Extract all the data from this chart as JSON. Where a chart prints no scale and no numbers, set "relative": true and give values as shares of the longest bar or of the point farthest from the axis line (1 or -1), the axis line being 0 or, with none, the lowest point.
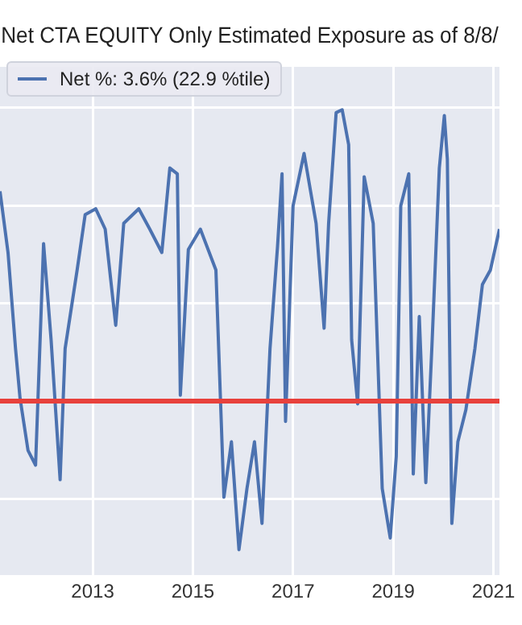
{
  "chart_data": {
    "type": "line",
    "title": "Net CTA EQUITY Only Estimated Exposure as of 8/8/",
    "relative": true,
    "x": [
      2011.15,
      2011.31,
      2011.46,
      2011.55,
      2011.71,
      2011.86,
      2012.02,
      2012.17,
      2012.35,
      2012.45,
      2012.69,
      2012.85,
      2013.06,
      2013.25,
      2013.46,
      2013.62,
      2013.92,
      2014.14,
      2014.38,
      2014.54,
      2014.69,
      2014.75,
      2014.91,
      2015.15,
      2015.46,
      2015.62,
      2015.77,
      2015.92,
      2016.08,
      2016.23,
      2016.38,
      2016.54,
      2016.69,
      2016.78,
      2016.85,
      2017.0,
      2017.22,
      2017.46,
      2017.62,
      2017.71,
      2017.86,
      2017.98,
      2018.11,
      2018.17,
      2018.29,
      2018.42,
      2018.6,
      2018.78,
      2018.94,
      2019.06,
      2019.15,
      2019.31,
      2019.4,
      2019.52,
      2019.65,
      2019.77,
      2019.92,
      2020.02,
      2020.08,
      2020.17,
      2020.29,
      2020.45,
      2020.63,
      2020.78,
      2020.94,
      2021.12
    ],
    "series": [
      {
        "name": "Net %:  3.6% (22.9 %tile)",
        "color": "#4c72b0",
        "values": [
          0.72,
          0.51,
          0.18,
          0.01,
          -0.17,
          -0.22,
          0.54,
          0.21,
          -0.27,
          0.18,
          0.45,
          0.64,
          0.66,
          0.59,
          0.26,
          0.61,
          0.66,
          0.59,
          0.51,
          0.8,
          0.78,
          0.02,
          0.52,
          0.59,
          0.45,
          -0.33,
          -0.14,
          -0.51,
          -0.3,
          -0.14,
          -0.42,
          0.18,
          0.53,
          0.78,
          -0.07,
          0.67,
          0.85,
          0.61,
          0.25,
          0.61,
          0.99,
          1,
          0.88,
          0.21,
          -0.01,
          0.77,
          0.61,
          -0.3,
          -0.47,
          -0.19,
          0.67,
          0.78,
          -0.25,
          0.29,
          -0.28,
          0.18,
          0.8,
          0.98,
          0.83,
          -0.42,
          -0.14,
          -0.03,
          0.18,
          0.4,
          0.45,
          0.59
        ]
      }
    ],
    "xlim": [
      2011.15,
      2021.12
    ],
    "xticks": [
      2013,
      2015,
      2017,
      2019,
      2021
    ],
    "ref_lines": [
      {
        "axis": "y",
        "value": 0,
        "color": "#e8413c"
      }
    ],
    "grid": true,
    "legend": "top left",
    "marker": "none",
    "line_style": "solid"
  }
}
